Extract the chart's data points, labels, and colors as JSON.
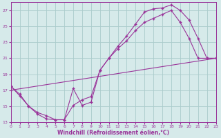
{
  "xlabel": "Windchill (Refroidissement éolien,°C)",
  "bg_color": "#d6eaea",
  "grid_color": "#aacccc",
  "line_color": "#993399",
  "xlim": [
    0,
    23
  ],
  "ylim": [
    13,
    28
  ],
  "xticks": [
    0,
    1,
    2,
    3,
    4,
    5,
    6,
    7,
    8,
    9,
    10,
    11,
    12,
    13,
    14,
    15,
    16,
    17,
    18,
    19,
    20,
    21,
    22,
    23
  ],
  "yticks": [
    13,
    15,
    17,
    19,
    21,
    23,
    25,
    27
  ],
  "series1_x": [
    0,
    1,
    2,
    3,
    4,
    5,
    6,
    7,
    8,
    9,
    10,
    11,
    12,
    13,
    14,
    15,
    16,
    17,
    18,
    19,
    20,
    21,
    22,
    23
  ],
  "series1_y": [
    17.5,
    16.5,
    15.0,
    14.0,
    13.4,
    13.3,
    13.3,
    17.2,
    15.1,
    15.5,
    19.5,
    21.0,
    22.5,
    23.8,
    25.3,
    26.8,
    27.2,
    27.3,
    27.7,
    27.0,
    25.8,
    23.5,
    21.0,
    21.0
  ],
  "series2_x": [
    0,
    1,
    2,
    3,
    4,
    5,
    6,
    7,
    8,
    9,
    10,
    11,
    12,
    13,
    14,
    15,
    16,
    17,
    18,
    19,
    20,
    21,
    22,
    23
  ],
  "series2_y": [
    17.5,
    16.3,
    15.0,
    14.2,
    13.8,
    13.3,
    13.3,
    15.1,
    15.8,
    16.2,
    19.5,
    21.0,
    22.2,
    23.2,
    24.5,
    25.5,
    26.0,
    26.5,
    27.0,
    25.5,
    23.5,
    21.0,
    21.0,
    21.0
  ],
  "series3_x": [
    0,
    23
  ],
  "series3_y": [
    17.0,
    21.0
  ]
}
